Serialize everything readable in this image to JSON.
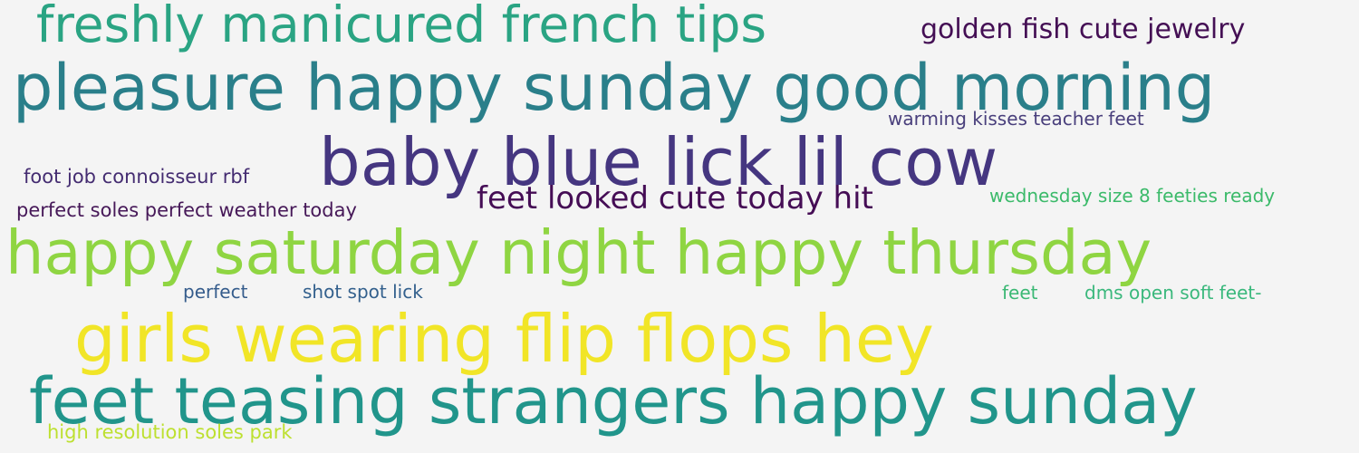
{
  "background_color": "#f4f4f4",
  "words": [
    {
      "text": "freshly manicured french tips",
      "color": "#2aa483"
    },
    {
      "text": "golden fish cute jewelry",
      "color": "#440f54"
    },
    {
      "text": "pleasure happy sunday good morning",
      "color": "#2a7f8a"
    },
    {
      "text": "warming kisses teacher feet",
      "color": "#493f7c"
    },
    {
      "text": "baby blue lick lil cow",
      "color": "#453680"
    },
    {
      "text": "foot job connoisseur rbf",
      "color": "#442c71"
    },
    {
      "text": "feet looked cute today hit",
      "color": "#450d55"
    },
    {
      "text": "wednesday size 8 feeties ready",
      "color": "#3bba6a"
    },
    {
      "text": "perfect soles perfect weather today",
      "color": "#461858"
    },
    {
      "text": "happy saturday night happy thursday",
      "color": "#8fd542"
    },
    {
      "text": "perfect",
      "color": "#355c8c"
    },
    {
      "text": "shot spot lick",
      "color": "#33608d"
    },
    {
      "text": "feet",
      "color": "#3bb874"
    },
    {
      "text": "dms open soft feet-",
      "color": "#3ab87c"
    },
    {
      "text": "girls wearing flip flops hey",
      "color": "#f1e527"
    },
    {
      "text": "feet teasing strangers happy sunday",
      "color": "#21958b"
    },
    {
      "text": "high resolution soles park",
      "color": "#bde030"
    }
  ]
}
